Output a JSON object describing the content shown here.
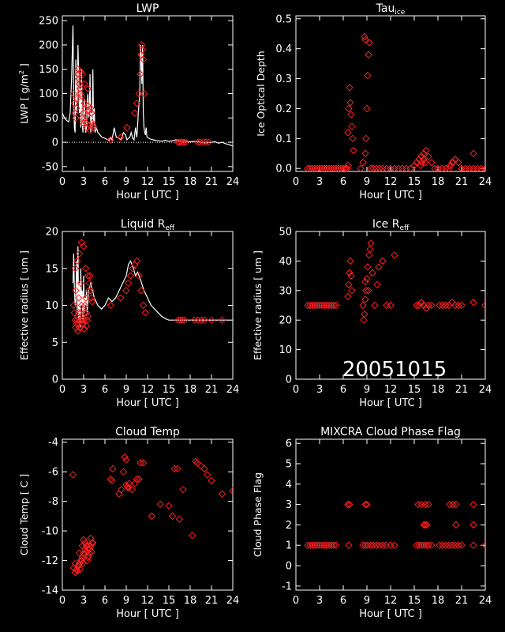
{
  "date_label": "20051015",
  "chart_data": [
    {
      "id": "lwp",
      "type": "scatter",
      "title": "LWP",
      "xlabel": "Hour [ UTC ]",
      "ylabel_main": "LWP [ g/m",
      "ylabel_sup": "2",
      "ylabel_tail": " ]",
      "xlim": [
        0,
        24
      ],
      "ylim": [
        -60,
        260
      ],
      "xticks": [
        0,
        3,
        6,
        9,
        12,
        15,
        18,
        21,
        24
      ],
      "yticks": [
        -50,
        0,
        50,
        100,
        150,
        200,
        250
      ],
      "zero_line": true,
      "line": {
        "x": [
          0.0,
          0.3,
          0.6,
          0.9,
          1.1,
          1.3,
          1.5,
          1.6,
          1.7,
          1.8,
          1.9,
          2.0,
          2.1,
          2.2,
          2.3,
          2.4,
          2.5,
          2.6,
          2.7,
          2.8,
          2.9,
          3.0,
          3.1,
          3.2,
          3.3,
          3.4,
          3.5,
          3.6,
          3.7,
          3.8,
          3.9,
          4.0,
          4.1,
          4.2,
          4.3,
          4.4,
          4.5,
          4.6,
          4.8,
          5.0,
          5.3,
          5.6,
          6.0,
          6.3,
          6.6,
          6.8,
          7.0,
          7.3,
          7.6,
          8.0,
          8.3,
          8.6,
          8.9,
          9.1,
          9.3,
          9.5,
          9.7,
          9.9,
          10.1,
          10.3,
          10.5,
          10.7,
          10.9,
          11.0,
          11.1,
          11.2,
          11.3,
          11.4,
          11.5,
          11.6,
          11.7,
          11.8,
          11.9,
          12.0,
          12.2,
          12.5,
          12.8,
          13.1,
          13.5,
          14.0,
          14.5,
          15.0,
          15.5,
          16.0,
          16.5,
          17.0,
          17.5,
          18.0,
          18.5,
          19.0,
          19.5,
          20.0,
          20.5,
          21.0,
          21.5,
          22.0,
          22.5,
          23.0,
          23.5,
          24.0
        ],
        "y": [
          60,
          50,
          45,
          42,
          60,
          130,
          240,
          80,
          30,
          20,
          170,
          60,
          90,
          200,
          140,
          60,
          110,
          30,
          150,
          40,
          20,
          60,
          90,
          40,
          20,
          30,
          80,
          100,
          50,
          60,
          140,
          20,
          60,
          30,
          150,
          40,
          70,
          20,
          30,
          20,
          15,
          10,
          8,
          6,
          4,
          10,
          5,
          30,
          10,
          8,
          5,
          20,
          15,
          5,
          8,
          10,
          20,
          8,
          5,
          30,
          10,
          60,
          100,
          200,
          180,
          120,
          200,
          60,
          30,
          20,
          15,
          30,
          12,
          10,
          8,
          6,
          5,
          4,
          3,
          2,
          4,
          2,
          3,
          5,
          2,
          3,
          2,
          1,
          2,
          1,
          0,
          -2,
          -1,
          0,
          1,
          -2,
          0,
          -3,
          -5,
          -8
        ]
      },
      "points": {
        "x": [
          1.6,
          1.7,
          1.8,
          1.9,
          2.0,
          2.1,
          2.2,
          2.3,
          2.4,
          2.5,
          2.6,
          2.7,
          2.8,
          2.9,
          3.0,
          3.1,
          3.2,
          3.3,
          3.4,
          3.5,
          3.6,
          3.7,
          3.8,
          3.9,
          4.0,
          4.1,
          4.2,
          4.3,
          4.4,
          2.2,
          2.6,
          2.8,
          3.1,
          3.6,
          4.1,
          6.8,
          8.2,
          9.1,
          10.2,
          10.5,
          10.8,
          11.0,
          11.1,
          11.2,
          11.3,
          11.4,
          11.5,
          16.3,
          16.5,
          16.8,
          17.1,
          17.4,
          19.1,
          19.4,
          19.8,
          20.2,
          20.6
        ],
        "y": [
          100,
          80,
          60,
          50,
          70,
          90,
          140,
          130,
          120,
          110,
          100,
          95,
          50,
          40,
          60,
          80,
          70,
          40,
          30,
          55,
          75,
          65,
          35,
          25,
          70,
          60,
          40,
          35,
          30,
          150,
          145,
          140,
          120,
          110,
          60,
          5,
          10,
          30,
          60,
          80,
          100,
          140,
          180,
          200,
          190,
          170,
          100,
          0,
          0,
          0,
          0,
          0,
          0,
          0,
          0,
          0,
          0
        ]
      }
    },
    {
      "id": "tau",
      "type": "scatter",
      "title": "Tau",
      "title_sub": "ice",
      "xlabel": "Hour [ UTC ]",
      "ylabel": "Ice Optical Depth",
      "xlim": [
        0,
        24
      ],
      "ylim": [
        -0.01,
        0.51
      ],
      "xticks": [
        0,
        3,
        6,
        9,
        12,
        15,
        18,
        21,
        24
      ],
      "yticks": [
        0.0,
        0.1,
        0.2,
        0.3,
        0.4,
        0.5
      ],
      "ytick_labels": [
        "0.0",
        "0.1",
        "0.2",
        "0.3",
        "0.4",
        "0.5"
      ],
      "points": {
        "x": [
          1.5,
          1.8,
          2.1,
          2.4,
          2.7,
          3.0,
          3.3,
          3.6,
          3.9,
          4.2,
          4.5,
          4.8,
          5.1,
          5.4,
          5.7,
          6.0,
          6.3,
          6.6,
          6.7,
          6.8,
          6.9,
          7.0,
          7.1,
          7.2,
          7.3,
          6.5,
          6.6,
          8.2,
          8.5,
          8.8,
          8.9,
          9.0,
          9.1,
          9.2,
          9.3,
          8.7,
          8.8,
          9.5,
          9.8,
          10.2,
          10.6,
          11.0,
          11.5,
          12.0,
          12.5,
          13.0,
          13.5,
          14.0,
          14.5,
          15.0,
          15.3,
          15.6,
          15.9,
          16.2,
          16.5,
          16.8,
          17.2,
          17.6,
          18.0,
          18.5,
          19.0,
          19.4,
          19.8,
          20.2,
          20.6,
          21.0,
          21.5,
          22.0,
          22.5,
          23.0,
          23.5,
          24.0,
          15.8,
          16.0,
          16.2,
          16.4,
          19.6,
          19.9,
          20.2,
          22.5
        ],
        "y": [
          0,
          0,
          0,
          0,
          0,
          0,
          0,
          0,
          0,
          0,
          0,
          0,
          0,
          0,
          0,
          0,
          0,
          0.12,
          0.2,
          0.27,
          0.22,
          0.18,
          0.14,
          0.1,
          0.06,
          0.0,
          0.01,
          0.0,
          0.02,
          0.05,
          0.1,
          0.2,
          0.31,
          0.38,
          0.42,
          0.44,
          0.43,
          0.0,
          0.0,
          0.0,
          0.0,
          0.0,
          0.0,
          0.0,
          0.0,
          0.0,
          0.0,
          0.0,
          0.0,
          0.01,
          0.02,
          0.03,
          0.04,
          0.05,
          0.06,
          0.04,
          0.02,
          0.0,
          0.0,
          0.0,
          0.0,
          0.0,
          0.02,
          0.03,
          0.02,
          0.0,
          0.0,
          0.0,
          0.0,
          0.0,
          0.0,
          0.0,
          0.01,
          0.02,
          0.03,
          0.02,
          0.01,
          0.02,
          0.03,
          0.05
        ]
      }
    },
    {
      "id": "lreff",
      "type": "scatter",
      "title": "Liquid R",
      "title_sub": "eff",
      "xlabel": "Hour [ UTC ]",
      "ylabel": "Effective radius [ um ]",
      "xlim": [
        0,
        24
      ],
      "ylim": [
        0,
        20
      ],
      "xticks": [
        0,
        3,
        6,
        9,
        12,
        15,
        18,
        21,
        24
      ],
      "yticks": [
        0,
        5,
        10,
        15,
        20
      ],
      "line": {
        "x": [
          1.5,
          1.6,
          1.7,
          1.8,
          1.9,
          2.0,
          2.1,
          2.2,
          2.3,
          2.4,
          2.5,
          2.6,
          2.7,
          2.8,
          2.9,
          3.0,
          3.1,
          3.2,
          3.3,
          3.4,
          3.5,
          3.7,
          4.0,
          4.5,
          5.0,
          5.5,
          6.0,
          6.5,
          7.0,
          7.5,
          8.0,
          8.5,
          9.0,
          9.3,
          9.6,
          10.0,
          10.3,
          10.6,
          11.0,
          11.5,
          12.0,
          12.5,
          13.0,
          13.5,
          14.0,
          14.5,
          15.0,
          15.5,
          16.0,
          17.0,
          18.0,
          19.0,
          20.0,
          21.0,
          22.0,
          23.0,
          24.0
        ],
        "y": [
          13,
          17,
          12,
          10,
          11,
          16,
          9,
          18,
          8,
          13,
          7,
          15,
          10,
          12,
          8,
          14,
          9,
          11,
          10,
          12,
          9,
          12,
          13,
          11,
          10,
          9.5,
          10,
          11,
          10.5,
          11,
          12,
          13,
          14,
          15.5,
          16,
          15,
          14,
          14.5,
          13.5,
          12,
          11,
          10,
          9.5,
          9,
          8.5,
          8.2,
          8,
          8,
          8,
          8,
          8,
          8,
          8,
          8,
          8,
          8,
          8
        ]
      },
      "points": {
        "x": [
          1.6,
          1.7,
          1.8,
          1.9,
          2.0,
          2.1,
          2.2,
          2.3,
          2.4,
          2.5,
          2.6,
          2.7,
          2.8,
          2.9,
          3.0,
          3.1,
          3.2,
          3.3,
          3.4,
          3.5,
          3.6,
          3.7,
          3.8,
          3.9,
          4.0,
          4.1,
          4.2,
          1.8,
          2.1,
          2.4,
          2.7,
          3.0,
          3.3,
          3.6,
          2.2,
          2.5,
          2.8,
          3.1,
          3.4,
          1.9,
          2.3,
          2.6,
          6.8,
          8.2,
          9.0,
          9.3,
          9.6,
          9.9,
          10.2,
          10.5,
          10.8,
          11.1,
          11.4,
          11.7,
          16.3,
          16.6,
          16.9,
          17.2,
          18.6,
          19.1,
          19.6,
          20.0,
          21.0,
          22.5
        ],
        "y": [
          10,
          9,
          8,
          7,
          7.5,
          8,
          8.5,
          9,
          7,
          8,
          9,
          10,
          8,
          7.5,
          8,
          9,
          10,
          11,
          9,
          8,
          8.5,
          12,
          13,
          14,
          12,
          11,
          10.5,
          15,
          16,
          17,
          18.5,
          18,
          15,
          14,
          6.5,
          7,
          7.5,
          6.8,
          7.2,
          12,
          11,
          13,
          10,
          11,
          12,
          13,
          14,
          15,
          15.5,
          16,
          14,
          12,
          10,
          9,
          8,
          8,
          8,
          8,
          8,
          8,
          8,
          8,
          8,
          8
        ]
      }
    },
    {
      "id": "ireff",
      "type": "scatter",
      "title": "Ice R",
      "title_sub": "eff",
      "xlabel": "Hour [ UTC ]",
      "ylabel": "Effective radius [ um ]",
      "xlim": [
        0,
        24
      ],
      "ylim": [
        0,
        50
      ],
      "xticks": [
        0,
        3,
        6,
        9,
        12,
        15,
        18,
        21,
        24
      ],
      "yticks": [
        0,
        10,
        20,
        30,
        40,
        50
      ],
      "points": {
        "x": [
          1.5,
          1.8,
          2.1,
          2.4,
          2.7,
          3.0,
          3.3,
          3.6,
          3.9,
          4.2,
          4.5,
          4.8,
          5.1,
          6.6,
          6.7,
          6.8,
          6.9,
          7.0,
          7.1,
          8.5,
          8.7,
          8.8,
          8.9,
          9.0,
          9.1,
          9.2,
          9.3,
          9.5,
          10.0,
          10.5,
          11.0,
          11.5,
          12.0,
          12.5,
          8.6,
          8.8,
          9.4,
          9.7,
          10.3,
          15.3,
          15.6,
          15.9,
          16.2,
          16.5,
          16.8,
          17.2,
          18.2,
          18.6,
          19.0,
          19.4,
          19.8,
          20.2,
          20.6,
          21.0,
          22.5,
          24.0
        ],
        "y": [
          25,
          25,
          25,
          25,
          25,
          25,
          25,
          25,
          25,
          25,
          25,
          25,
          25,
          28,
          32,
          36,
          40,
          35,
          30,
          25,
          22,
          27,
          30,
          34,
          38,
          30,
          42,
          46,
          25,
          38,
          40,
          25,
          25,
          42,
          20,
          33,
          44,
          36,
          32,
          25,
          25,
          26,
          25,
          24,
          25,
          25,
          25,
          25,
          25,
          25,
          26,
          25,
          25,
          25,
          26,
          25
        ]
      }
    },
    {
      "id": "ctemp",
      "type": "scatter",
      "title": "Cloud Temp",
      "xlabel": "Hour [ UTC ]",
      "ylabel": "Cloud Temp [ C ]",
      "xlim": [
        0,
        24
      ],
      "ylim": [
        -14,
        -3.8
      ],
      "xticks": [
        0,
        3,
        6,
        9,
        12,
        15,
        18,
        21,
        24
      ],
      "yticks": [
        -14,
        -12,
        -10,
        -8,
        -6,
        -4
      ],
      "points": {
        "x": [
          1.5,
          1.6,
          1.8,
          2.0,
          2.2,
          2.4,
          2.6,
          2.8,
          3.0,
          3.2,
          3.4,
          3.6,
          3.8,
          4.0,
          4.2,
          2.1,
          2.3,
          2.5,
          2.7,
          2.9,
          3.1,
          3.3,
          3.5,
          3.7,
          3.9,
          4.1,
          2.4,
          2.8,
          3.2,
          3.6,
          4.0,
          4.3,
          3.0,
          3.5,
          1.8,
          6.8,
          7.0,
          7.1,
          8.0,
          8.3,
          8.6,
          8.8,
          9.0,
          9.2,
          9.4,
          9.0,
          9.3,
          9.8,
          10.2,
          10.5,
          11.0,
          11.4,
          10.8,
          12.6,
          13.8,
          15.0,
          15.5,
          15.8,
          16.2,
          16.5,
          17.0,
          18.3,
          18.8,
          19.0,
          19.5,
          20.0,
          20.4,
          21.0,
          22.5,
          24.0
        ],
        "y": [
          -6.2,
          -12.5,
          -12.8,
          -12.6,
          -12.4,
          -12.2,
          -12.0,
          -11.8,
          -11.5,
          -11.2,
          -11.0,
          -11.8,
          -11.5,
          -11.0,
          -10.8,
          -12.7,
          -12.3,
          -12.6,
          -12.0,
          -12.2,
          -11.6,
          -11.4,
          -12.0,
          -11.7,
          -11.2,
          -11.4,
          -11.5,
          -11.0,
          -10.8,
          -11.2,
          -10.5,
          -10.8,
          -10.6,
          -11.0,
          -12.2,
          -6.5,
          -6.6,
          -5.8,
          -7.5,
          -7.2,
          -6.0,
          -5.0,
          -5.2,
          -7.0,
          -6.8,
          -6.9,
          -7.1,
          -7.2,
          -6.8,
          -6.5,
          -5.4,
          -5.4,
          -6.5,
          -9.0,
          -8.2,
          -8.3,
          -9.0,
          -5.8,
          -5.8,
          -9.2,
          -7.2,
          -10.3,
          -5.3,
          -5.4,
          -5.6,
          -5.8,
          -6.2,
          -6.6,
          -7.5,
          -7.3
        ]
      }
    },
    {
      "id": "phase",
      "type": "scatter",
      "title": "MIXCRA Cloud Phase Flag",
      "xlabel": "Hour [ UTC ]",
      "ylabel": "Cloud Phase Flag",
      "xlim": [
        0,
        24
      ],
      "ylim": [
        -1.2,
        6.2
      ],
      "xticks": [
        0,
        3,
        6,
        9,
        12,
        15,
        18,
        21,
        24
      ],
      "yticks": [
        -1,
        0,
        1,
        2,
        3,
        4,
        5,
        6
      ],
      "points": {
        "x": [
          1.5,
          1.8,
          2.1,
          2.4,
          2.7,
          3.0,
          3.3,
          3.6,
          3.9,
          4.2,
          4.5,
          4.8,
          5.1,
          6.7,
          8.5,
          8.8,
          9.1,
          9.5,
          9.8,
          10.2,
          10.6,
          11.0,
          11.4,
          12.0,
          12.5,
          15.3,
          15.6,
          15.9,
          16.2,
          16.5,
          16.8,
          17.2,
          18.2,
          18.6,
          19.0,
          19.4,
          19.8,
          20.2,
          20.6,
          21.0,
          22.5,
          24.0,
          6.6,
          6.8,
          8.8,
          9.0,
          15.5,
          15.9,
          16.4,
          16.8,
          19.5,
          19.9,
          20.3,
          22.5,
          16.2,
          16.4,
          16.6,
          20.3,
          22.5
        ],
        "y": [
          1,
          1,
          1,
          1,
          1,
          1,
          1,
          1,
          1,
          1,
          1,
          1,
          1,
          1,
          1,
          1,
          1,
          1,
          1,
          1,
          1,
          1,
          1,
          1,
          1,
          1,
          1,
          1,
          1,
          1,
          1,
          1,
          1,
          1,
          1,
          1,
          1,
          1,
          1,
          1,
          1,
          1,
          3,
          3,
          3,
          3,
          3,
          3,
          3,
          3,
          3,
          3,
          3,
          3,
          2,
          2,
          2,
          2,
          2
        ]
      }
    }
  ]
}
